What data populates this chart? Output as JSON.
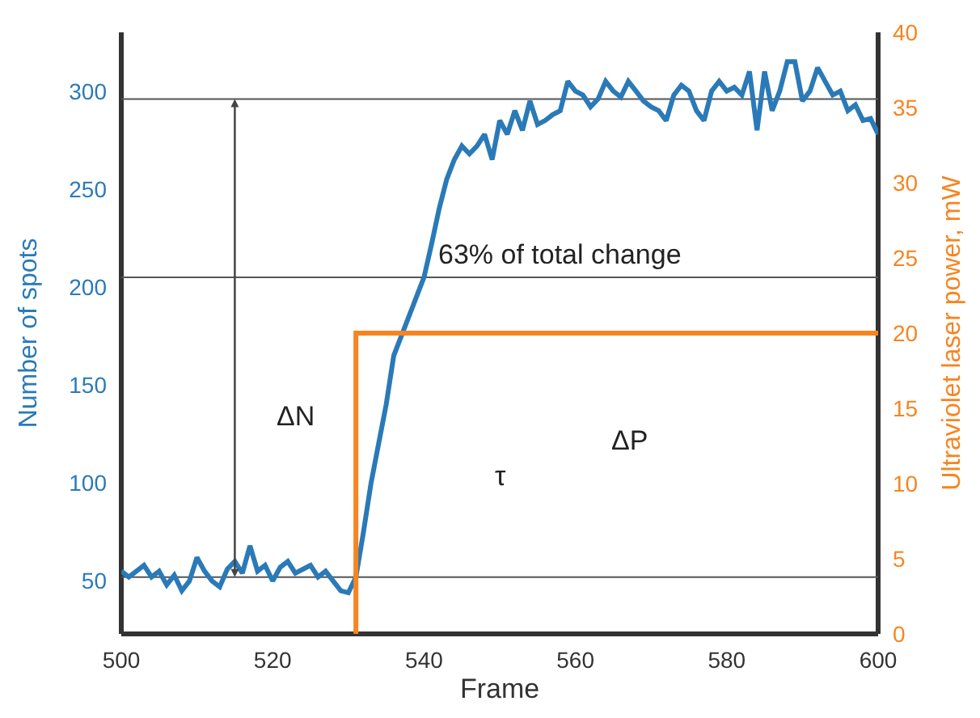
{
  "chart_data": {
    "type": "line",
    "xlabel": "Frame",
    "ylabel": "Number of spots",
    "y2label": "Ultraviolet laser power, mW",
    "x": [
      500,
      501,
      502,
      503,
      504,
      505,
      506,
      507,
      508,
      509,
      510,
      511,
      512,
      513,
      514,
      515,
      516,
      517,
      518,
      519,
      520,
      521,
      522,
      523,
      524,
      525,
      526,
      527,
      528,
      529,
      530,
      531,
      532,
      533,
      534,
      535,
      536,
      537,
      538,
      539,
      540,
      541,
      542,
      543,
      544,
      545,
      546,
      547,
      548,
      549,
      550,
      551,
      552,
      553,
      554,
      555,
      556,
      557,
      558,
      559,
      560,
      561,
      562,
      563,
      564,
      565,
      566,
      567,
      568,
      569,
      570,
      571,
      572,
      573,
      574,
      575,
      576,
      577,
      578,
      579,
      580,
      581,
      582,
      583,
      584,
      585,
      586,
      587,
      588,
      589,
      590,
      591,
      592,
      593,
      594,
      595,
      596,
      597,
      598,
      599,
      600
    ],
    "series": [
      {
        "color": "#2a7ab8",
        "values": [
          55,
          52,
          55,
          58,
          52,
          55,
          48,
          53,
          45,
          50,
          62,
          55,
          50,
          47,
          56,
          60,
          54,
          68,
          55,
          58,
          50,
          57,
          60,
          54,
          56,
          58,
          52,
          55,
          50,
          45,
          44,
          52,
          75,
          100,
          120,
          140,
          165,
          175,
          185,
          195,
          205,
          222,
          240,
          255,
          265,
          272,
          268,
          272,
          278,
          265,
          285,
          278,
          290,
          280,
          295,
          283,
          285,
          288,
          290,
          305,
          300,
          298,
          292,
          296,
          305,
          300,
          297,
          305,
          300,
          295,
          292,
          290,
          285,
          298,
          303,
          300,
          290,
          285,
          300,
          305,
          300,
          302,
          298,
          310,
          280,
          310,
          290,
          300,
          315,
          315,
          295,
          300,
          312,
          305,
          298,
          300,
          290,
          293,
          285,
          286,
          278
        ]
      },
      {
        "color": "#f7841f",
        "axis": "y2",
        "type": "step",
        "x": [
          531,
          600
        ],
        "values": [
          0,
          20
        ]
      }
    ],
    "xlim": [
      500,
      600
    ],
    "xticks": [
      500,
      520,
      540,
      560,
      580,
      600
    ],
    "ylim": [
      23,
      330
    ],
    "yticks": [
      50,
      100,
      150,
      200,
      250,
      300
    ],
    "y2lim": [
      0,
      40
    ],
    "y2ticks": [
      0,
      5,
      10,
      15,
      20,
      25,
      30,
      35,
      40
    ],
    "ref_lines": [
      {
        "axis": "y",
        "value": 296,
        "color": "#555555"
      },
      {
        "axis": "y",
        "value": 52,
        "color": "#555555"
      },
      {
        "axis": "y",
        "value": 205,
        "color": "#555555"
      }
    ],
    "annotations": [
      "ΔN",
      "63% of total change",
      "τ",
      "ΔP"
    ],
    "grid": false,
    "legend": false
  }
}
